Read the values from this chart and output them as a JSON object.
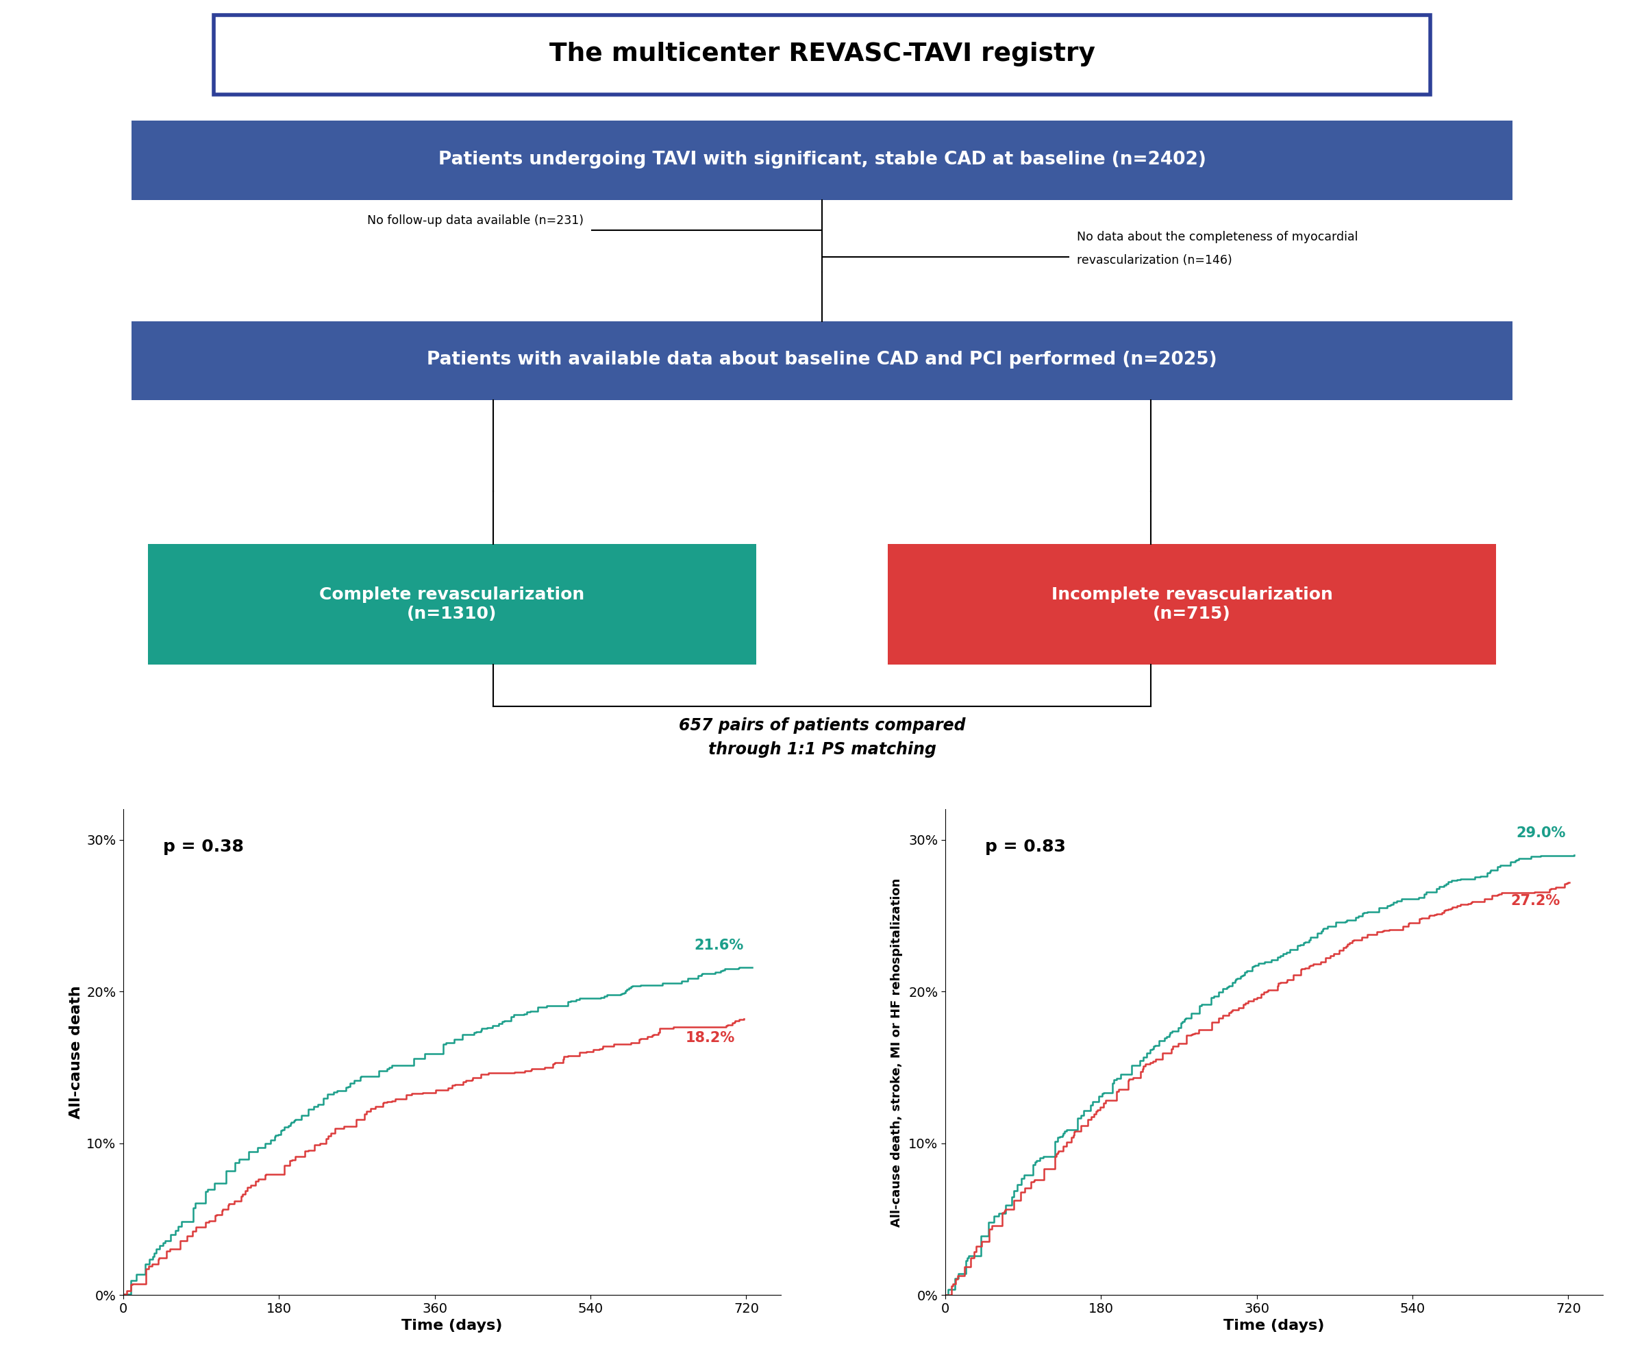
{
  "title": "The multicenter REVASC-TAVI registry",
  "title_border_color": "#2e4098",
  "title_bg": "#ffffff",
  "title_text_color": "#000000",
  "box1_text": "Patients undergoing TAVI with significant, stable CAD at baseline (n=2402)",
  "box1_bg": "#3d5a9e",
  "box1_text_color": "#ffffff",
  "exclusion1_text": "No follow-up data available (n=231)",
  "exclusion2_line1": "No data about the completeness of myocardial",
  "exclusion2_line2": "revascularization (n=146)",
  "box2_text": "Patients with available data about baseline CAD and PCI performed (n=2025)",
  "box2_bg": "#3d5a9e",
  "box2_text_color": "#ffffff",
  "complete_text": "Complete revascularization\n(n=1310)",
  "complete_bg": "#1b9e8a",
  "complete_text_color": "#ffffff",
  "incomplete_text": "Incomplete revascularization\n(n=715)",
  "incomplete_bg": "#dc3b3b",
  "incomplete_text_color": "#ffffff",
  "matching_text_line1": "657 pairs of patients compared",
  "matching_text_line2": "through 1:1 PS matching",
  "teal_color": "#1b9e8a",
  "red_color": "#dc3b3b",
  "plot1_ylabel": "All-cause death",
  "plot1_xlabel": "Time (days)",
  "plot1_pvalue": "p = 0.38",
  "plot1_teal_label": "21.6%",
  "plot1_red_label": "18.2%",
  "plot1_teal_final": 21.6,
  "plot1_red_final": 18.2,
  "plot2_ylabel": "All-cause death, stroke, MI or HF rehospitalization",
  "plot2_xlabel": "Time (days)",
  "plot2_pvalue": "p = 0.83",
  "plot2_teal_label": "29.0%",
  "plot2_red_label": "27.2%",
  "plot2_teal_final": 29.0,
  "plot2_red_final": 27.2,
  "xticks": [
    0,
    180,
    360,
    540,
    720
  ],
  "yticks": [
    0,
    10,
    20,
    30
  ],
  "ylim": [
    0,
    32
  ],
  "xlim": [
    0,
    760
  ]
}
